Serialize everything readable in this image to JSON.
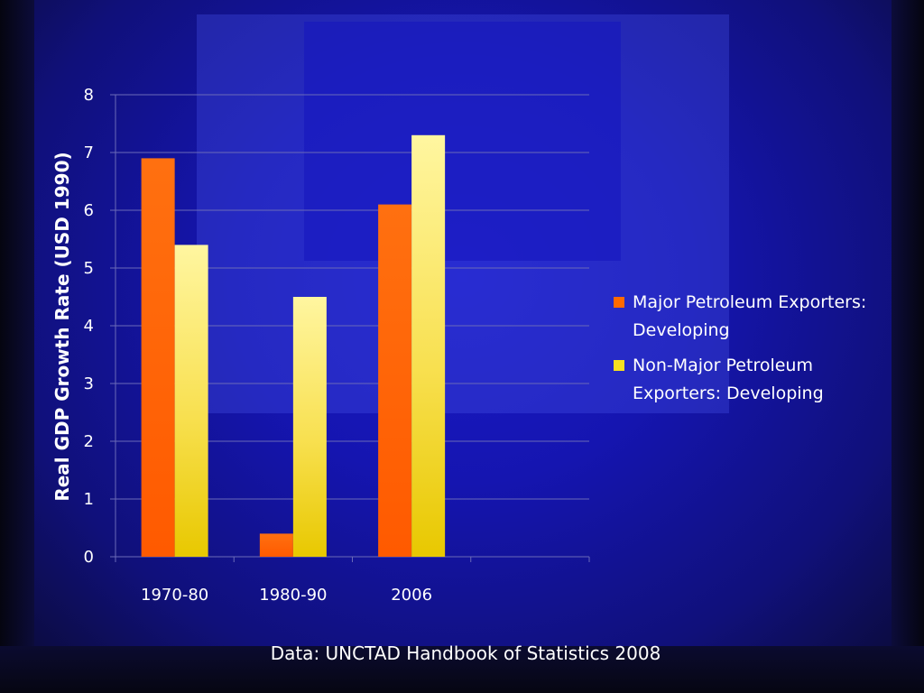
{
  "chart_data": {
    "type": "bar",
    "title": "",
    "xlabel": "",
    "ylabel": "Real GDP Growth Rate (USD 1990)",
    "categories": [
      "1970-80",
      "1980-90",
      "2006"
    ],
    "ylim": [
      0,
      8
    ],
    "yticks": [
      "0",
      "1",
      "2",
      "3",
      "4",
      "5",
      "6",
      "7",
      "8"
    ],
    "grid": true,
    "legend_position": "right",
    "series": [
      {
        "name": "Major Petroleum Exporters: Developing",
        "values": [
          6.9,
          0.4,
          6.1
        ],
        "color": "#ff6a00"
      },
      {
        "name": "Non-Major Petroleum Exporters: Developing",
        "values": [
          5.4,
          4.5,
          7.3
        ],
        "color": "#f2d21a"
      }
    ]
  },
  "legend": {
    "items": [
      {
        "label": "Major Petroleum Exporters: Developing",
        "color": "#ff6a00"
      },
      {
        "label": "Non-Major Petroleum Exporters: Developing",
        "color": "#f5e020"
      }
    ]
  },
  "source_note": "Data: UNCTAD Handbook of Statistics 2008",
  "colors": {
    "background": "#1515b0",
    "gridline": "#6a6ab8",
    "text": "#ffffff"
  }
}
